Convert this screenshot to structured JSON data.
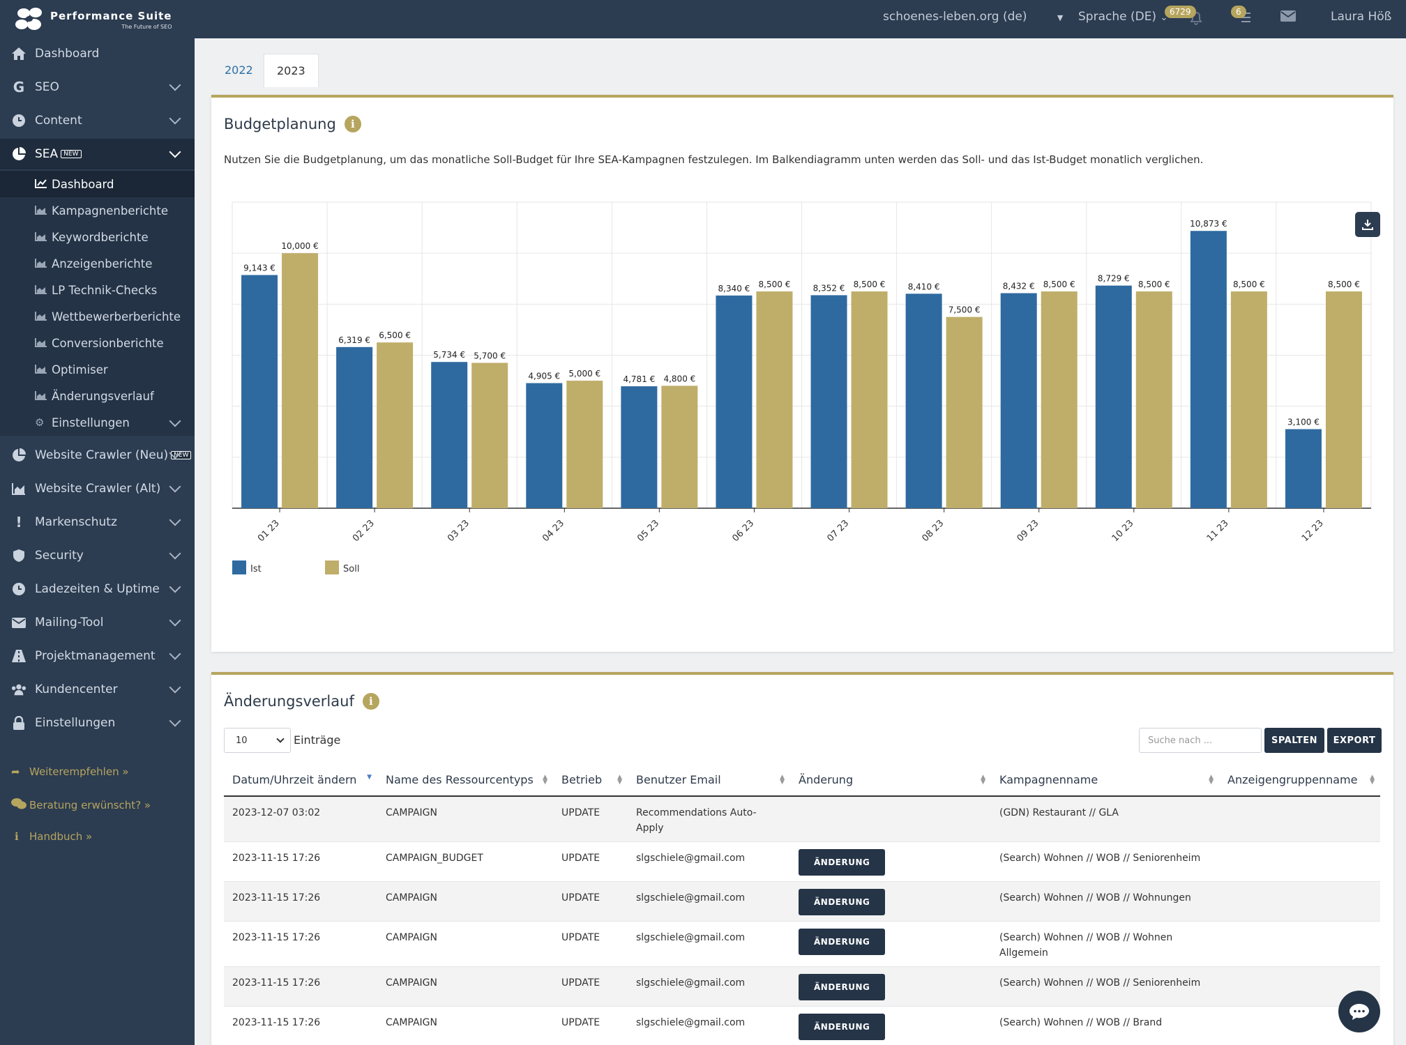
{
  "topbar": {
    "logo_title": "Performance Suite",
    "logo_sub": "The Future of SEO",
    "project": "schoenes-leben.org (de)",
    "language": "Sprache (DE)",
    "notif_count": "6729",
    "task_count": "6",
    "user": "Laura Höß"
  },
  "sidebar": {
    "items": [
      {
        "label": "Dashboard",
        "icon": "home-icon"
      },
      {
        "label": "SEO",
        "icon": "google-icon"
      },
      {
        "label": "Content",
        "icon": "clock-icon"
      },
      {
        "label": "SEA",
        "icon": "pie-chart-icon",
        "new": "NEW"
      },
      {
        "label": "Website Crawler (Neu)",
        "icon": "pie-chart-icon",
        "new": "NEW"
      },
      {
        "label": "Website Crawler (Alt)",
        "icon": "area-chart-icon"
      },
      {
        "label": "Markenschutz",
        "icon": "exclamation-icon"
      },
      {
        "label": "Security",
        "icon": "shield-icon"
      },
      {
        "label": "Ladezeiten & Uptime",
        "icon": "clock-icon"
      },
      {
        "label": "Mailing-Tool",
        "icon": "envelope-icon"
      },
      {
        "label": "Projektmanagement",
        "icon": "road-icon"
      },
      {
        "label": "Kundencenter",
        "icon": "users-icon"
      },
      {
        "label": "Einstellungen",
        "icon": "lock-icon"
      }
    ],
    "sea_sub": [
      {
        "label": "Dashboard"
      },
      {
        "label": "Kampagnenberichte"
      },
      {
        "label": "Keywordberichte"
      },
      {
        "label": "Anzeigenberichte"
      },
      {
        "label": "LP Technik-Checks"
      },
      {
        "label": "Wettbewerberberichte"
      },
      {
        "label": "Conversionberichte"
      },
      {
        "label": "Optimiser"
      },
      {
        "label": "Änderungsverlauf"
      },
      {
        "label": "Einstellungen"
      }
    ],
    "links": [
      {
        "label": "Weiterempfehlen »"
      },
      {
        "label": "Beratung erwünscht? »"
      },
      {
        "label": "Handbuch »"
      }
    ]
  },
  "tabs": [
    {
      "label": "2022"
    },
    {
      "label": "2023"
    }
  ],
  "budget": {
    "title": "Budgetplanung",
    "description": "Nutzen Sie die Budgetplanung, um das monatliche Soll-Budget für Ihre SEA-Kampagnen festzulegen. Im Balkendiagramm unten werden das Soll- und das Ist-Budget monatlich verglichen."
  },
  "chart_data": {
    "type": "bar",
    "categories": [
      "01 23",
      "02 23",
      "03 23",
      "04 23",
      "05 23",
      "06 23",
      "07 23",
      "08 23",
      "09 23",
      "10 23",
      "11 23",
      "12 23"
    ],
    "series": [
      {
        "name": "Ist",
        "color": "#2e6aa0",
        "values": [
          9143,
          6319,
          5734,
          4905,
          4781,
          8340,
          8352,
          8410,
          8432,
          8729,
          10873,
          3100
        ],
        "labels": [
          "9,143 €",
          "6,319 €",
          "5,734 €",
          "4,905 €",
          "4,781 €",
          "8,340 €",
          "8,352 €",
          "8,410 €",
          "8,432 €",
          "8,729 €",
          "10,873 €",
          "3,100 €"
        ]
      },
      {
        "name": "Soll",
        "color": "#bfae6a",
        "values": [
          10000,
          6500,
          5700,
          5000,
          4800,
          8500,
          8500,
          7500,
          8500,
          8500,
          8500,
          8500
        ],
        "labels": [
          "10,000 €",
          "6,500 €",
          "5,700 €",
          "5,000 €",
          "4,800 €",
          "8,500 €",
          "8,500 €",
          "7,500 €",
          "8,500 €",
          "8,500 €",
          "8,500 €",
          "8,500 €"
        ]
      }
    ],
    "ylim": [
      0,
      12000
    ],
    "grid": true,
    "legend": "bottom-left"
  },
  "history": {
    "title": "Änderungsverlauf",
    "page_size": "10",
    "entries_label": "Einträge",
    "search_placeholder": "Suche nach ...",
    "columns_btn": "SPALTEN",
    "export_btn": "EXPORT",
    "change_btn": "ÄNDERUNG",
    "headers": [
      "Datum/Uhrzeit ändern",
      "Name des Ressourcentyps",
      "Betrieb",
      "Benutzer Email",
      "Änderung",
      "Kampagnenname",
      "Anzeigengruppenname"
    ],
    "rows": [
      {
        "date": "2023-12-07 03:02",
        "type": "CAMPAIGN",
        "op": "UPDATE",
        "email": "Recommendations Auto-Apply",
        "change": false,
        "campaign": "(GDN) Restaurant // GLA",
        "adgroup": ""
      },
      {
        "date": "2023-11-15 17:26",
        "type": "CAMPAIGN_BUDGET",
        "op": "UPDATE",
        "email": "slgschiele@gmail.com",
        "change": true,
        "campaign": "(Search) Wohnen // WOB // Seniorenheim",
        "adgroup": ""
      },
      {
        "date": "2023-11-15 17:26",
        "type": "CAMPAIGN",
        "op": "UPDATE",
        "email": "slgschiele@gmail.com",
        "change": true,
        "campaign": "(Search) Wohnen // WOB // Wohnungen",
        "adgroup": ""
      },
      {
        "date": "2023-11-15 17:26",
        "type": "CAMPAIGN",
        "op": "UPDATE",
        "email": "slgschiele@gmail.com",
        "change": true,
        "campaign": "(Search) Wohnen // WOB // Wohnen Allgemein",
        "adgroup": ""
      },
      {
        "date": "2023-11-15 17:26",
        "type": "CAMPAIGN",
        "op": "UPDATE",
        "email": "slgschiele@gmail.com",
        "change": true,
        "campaign": "(Search) Wohnen // WOB // Seniorenheim",
        "adgroup": ""
      },
      {
        "date": "2023-11-15 17:26",
        "type": "CAMPAIGN",
        "op": "UPDATE",
        "email": "slgschiele@gmail.com",
        "change": true,
        "campaign": "(Search) Wohnen // WOB // Brand",
        "adgroup": ""
      }
    ]
  }
}
